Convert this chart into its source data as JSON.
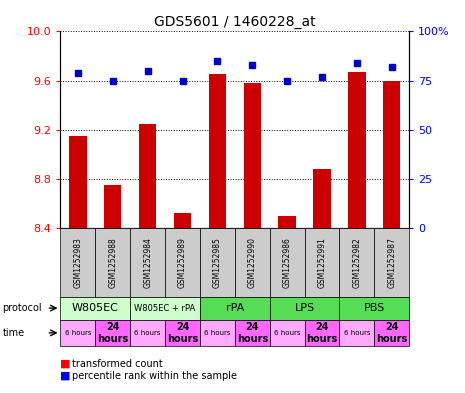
{
  "title": "GDS5601 / 1460228_at",
  "samples": [
    "GSM1252983",
    "GSM1252988",
    "GSM1252984",
    "GSM1252989",
    "GSM1252985",
    "GSM1252990",
    "GSM1252986",
    "GSM1252991",
    "GSM1252982",
    "GSM1252987"
  ],
  "bar_values": [
    9.15,
    8.75,
    9.25,
    8.52,
    9.65,
    9.58,
    8.5,
    8.88,
    9.67,
    9.6
  ],
  "dot_values": [
    79,
    75,
    80,
    75,
    85,
    83,
    75,
    77,
    84,
    82
  ],
  "ylim": [
    8.4,
    10.0
  ],
  "y2lim": [
    0,
    100
  ],
  "yticks": [
    8.4,
    8.8,
    9.2,
    9.6,
    10.0
  ],
  "y2ticks": [
    0,
    25,
    50,
    75,
    100
  ],
  "bar_color": "#cc0000",
  "dot_color": "#0000cc",
  "protocol_groups": [
    {
      "label": "W805EC",
      "cols": [
        0,
        1
      ],
      "color": "#ccffcc",
      "fontsize": 8
    },
    {
      "label": "W805EC + rPA",
      "cols": [
        2,
        3
      ],
      "color": "#ccffcc",
      "fontsize": 6
    },
    {
      "label": "rPA",
      "cols": [
        4,
        5
      ],
      "color": "#55dd55",
      "fontsize": 8
    },
    {
      "label": "LPS",
      "cols": [
        6,
        7
      ],
      "color": "#55dd55",
      "fontsize": 8
    },
    {
      "label": "PBS",
      "cols": [
        8,
        9
      ],
      "color": "#55dd55",
      "fontsize": 8
    }
  ],
  "times": [
    "6 hours",
    "24\nhours",
    "6 hours",
    "24\nhours",
    "6 hours",
    "24\nhours",
    "6 hours",
    "24\nhours",
    "6 hours",
    "24\nhours"
  ],
  "legend_red": "transformed count",
  "legend_blue": "percentile rank within the sample"
}
